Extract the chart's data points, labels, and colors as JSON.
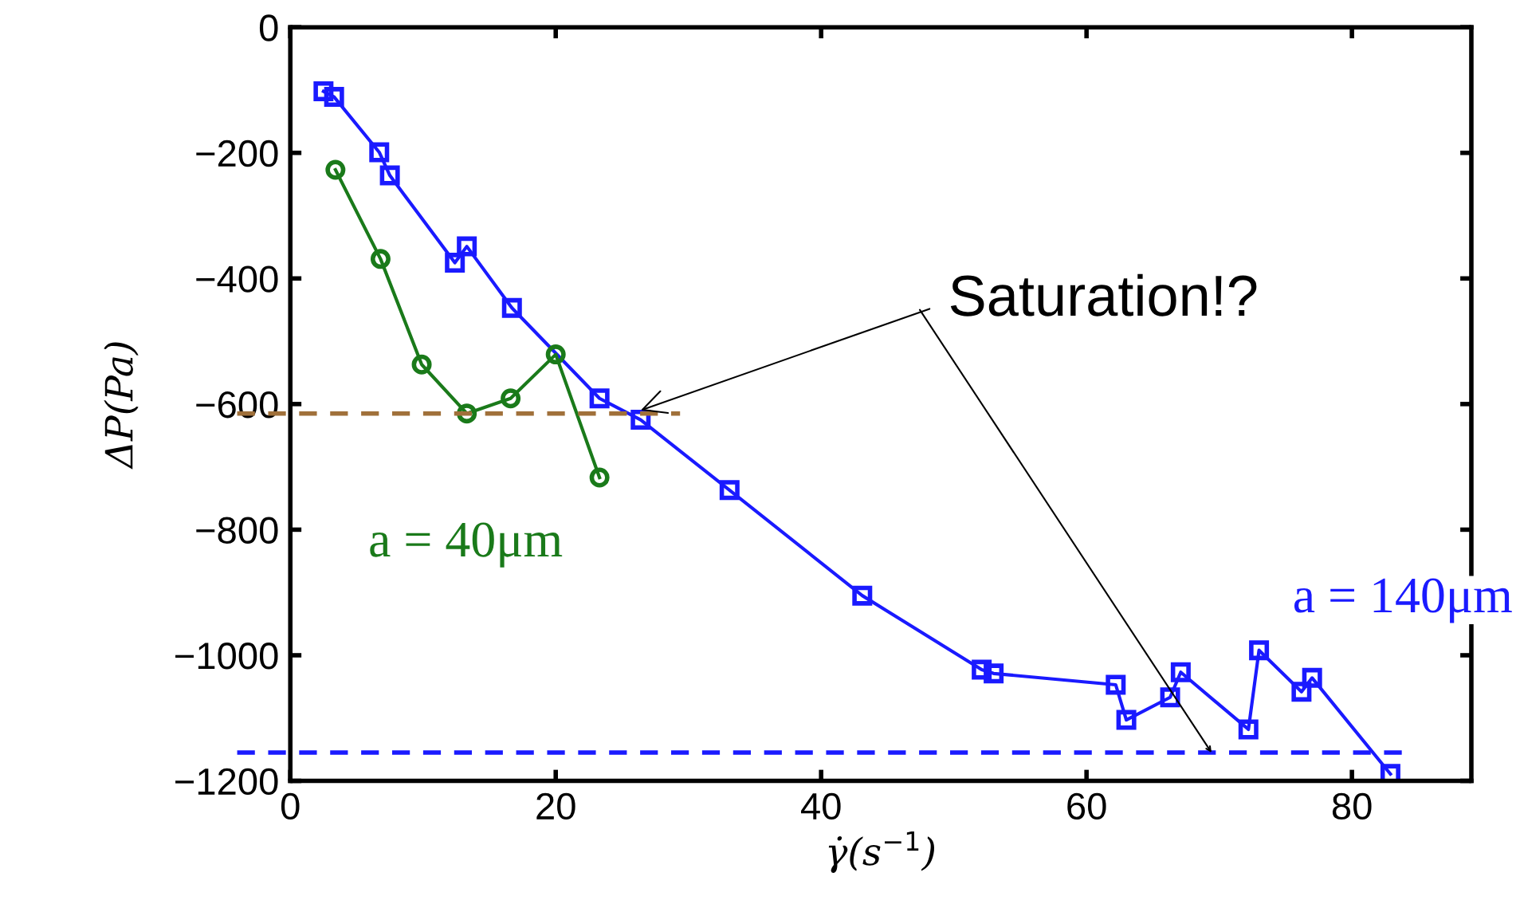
{
  "chart_data": {
    "type": "line",
    "xlabel": "γ̇(s$^{−1}$)",
    "ylabel": "ΔP(Pa)",
    "xlim": [
      0,
      89
    ],
    "xticks": [
      0,
      20,
      40,
      60,
      80
    ],
    "ylim": [
      -1200,
      0
    ],
    "yticks": [
      {
        "value": 0,
        "label": "0"
      },
      {
        "value": -200,
        "label": "−200"
      },
      {
        "value": -400,
        "label": "−400"
      },
      {
        "value": -600,
        "label": "−600"
      },
      {
        "value": -800,
        "label": "−800"
      },
      {
        "value": -1000,
        "label": "−1000"
      },
      {
        "value": -1200,
        "label": "−1200"
      }
    ],
    "grid": false,
    "legend": false,
    "series": [
      {
        "name": "a = 140μm",
        "color": "#1a1aff",
        "marker": "square",
        "x": [
          2.5,
          3.3,
          6.7,
          7.5,
          12.4,
          13.3,
          16.7,
          23.3,
          26.4,
          33.1,
          43.1,
          52.1,
          53.0,
          62.2,
          63.0,
          66.3,
          67.1,
          72.2,
          73.0,
          76.2,
          77.0,
          82.9
        ],
        "values": [
          -102,
          -111,
          -199,
          -236,
          -375,
          -349,
          -447,
          -591,
          -625,
          -737,
          -905,
          -1023,
          -1029,
          -1047,
          -1103,
          -1067,
          -1027,
          -1118,
          -992,
          -1058,
          -1036,
          -1189
        ]
      },
      {
        "name": "a = 40μm",
        "color": "#1a7a1a",
        "marker": "circle",
        "x": [
          3.4,
          6.8,
          9.9,
          13.3,
          16.6,
          20.0,
          23.3
        ],
        "values": [
          -227,
          -369,
          -537,
          -615,
          -591,
          -521,
          -717
        ]
      }
    ],
    "ref_lines": [
      {
        "axis": "y",
        "value": -615,
        "color": "#a0703a",
        "line_style": "dashed"
      },
      {
        "axis": "y",
        "value": -1155,
        "color": "#1a1aff",
        "line_style": "dashed"
      }
    ],
    "annotations": [
      {
        "text": "Saturation!?",
        "x": 26.4,
        "y": -610
      }
    ]
  }
}
